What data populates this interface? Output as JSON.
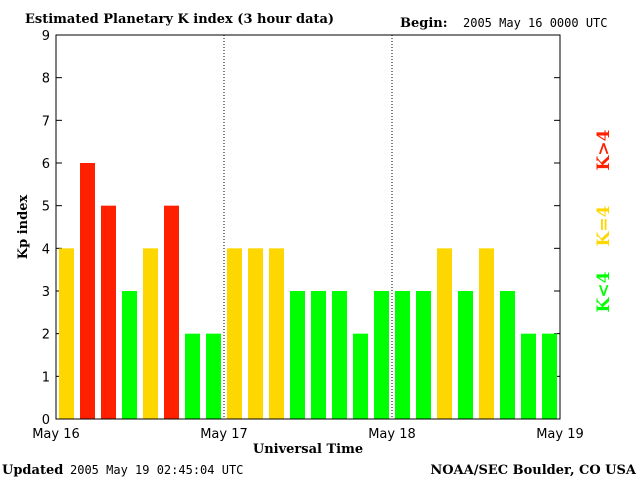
{
  "header": {
    "title": "Estimated Planetary K index (3 hour data)",
    "begin_label": "Begin:",
    "begin_value": "2005 May 16 0000 UTC"
  },
  "footer": {
    "updated_label": "Updated",
    "updated_value": "2005 May 19 02:45:04 UTC",
    "source": "NOAA/SEC Boulder, CO USA"
  },
  "legend": {
    "high": "K>4",
    "equal": "K=4",
    "low": "K<4"
  },
  "colors": {
    "high": "#ff2000",
    "equal": "#ffd700",
    "low": "#00ff00"
  },
  "chart_data": {
    "type": "bar",
    "title": "Estimated Planetary K index (3 hour data)",
    "xlabel": "Universal Time",
    "ylabel": "Kp index",
    "ylim": [
      0,
      9
    ],
    "yticks": [
      "0",
      "1",
      "2",
      "3",
      "4",
      "5",
      "6",
      "7",
      "8",
      "9"
    ],
    "xticks": [
      "May 16",
      "May 17",
      "May 18",
      "May 19"
    ],
    "grid": false,
    "values": [
      4,
      6,
      5,
      3,
      4,
      5,
      2,
      2,
      4,
      4,
      4,
      3,
      3,
      3,
      2,
      3,
      3,
      3,
      4,
      3,
      4,
      3,
      2,
      2
    ]
  }
}
